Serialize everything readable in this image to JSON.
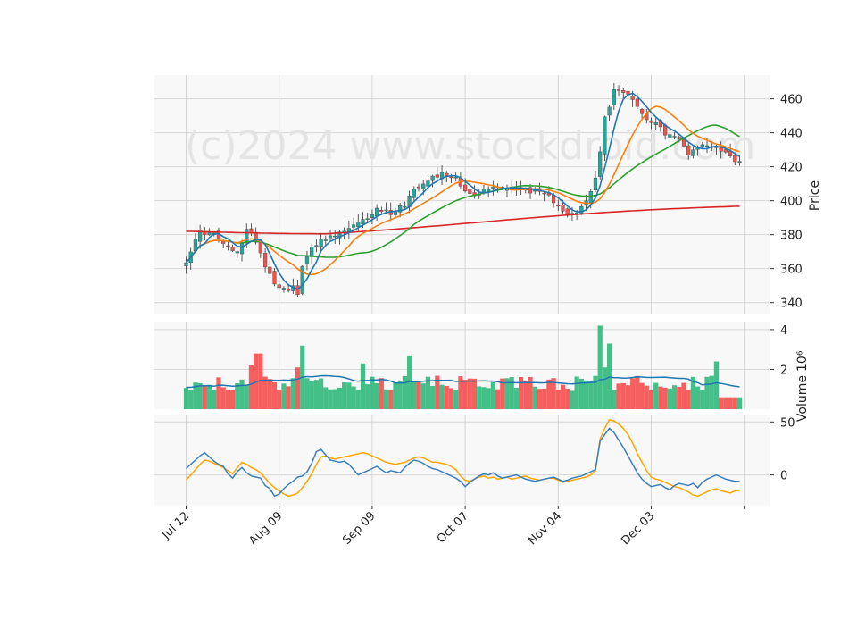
{
  "colors": {
    "up": "#26a69a",
    "down": "#ef5350",
    "up_vol": "#2fb87a",
    "down_vol": "#f64c4c",
    "ma_fast": "#1f77b4",
    "ma_mid": "#ff7f0e",
    "ma_slow": "#2ca02c",
    "ma_long": "#d62728",
    "osc_1": "#3b7fbf",
    "osc_2": "#ffa500",
    "panel_bg": "#f8f8f8",
    "grid": "#d6d6d6"
  },
  "watermark": "(c)2024 www.stockdroid.com",
  "chart_data": [
    {
      "panel": "price",
      "type": "candlestick",
      "ylabel": "Price",
      "ylim": [
        333,
        474
      ],
      "yticks": [
        "340",
        "360",
        "380",
        "400",
        "420",
        "440",
        "460"
      ],
      "ytick_values": [
        340,
        360,
        380,
        400,
        420,
        440,
        460
      ],
      "x_tick_labels": [
        "Jul 12",
        "Aug 09",
        "Sep 09",
        "Oct 07",
        "Nov 04",
        "Dec 03"
      ],
      "x_tick_index": [
        0,
        20,
        40,
        60,
        80,
        100
      ],
      "num_bars": 120,
      "overlay_series": [
        "ma_fast",
        "ma_mid",
        "ma_slow",
        "ma_long"
      ],
      "grid": true
    },
    {
      "panel": "volume",
      "type": "bar",
      "ylabel": "Volume",
      "ylabel_exponent": "10⁶",
      "ylim": [
        0,
        4.4
      ],
      "yticks": [
        "2",
        "4"
      ],
      "ytick_values": [
        2,
        4
      ],
      "overlay_series": [
        "volume_ma"
      ],
      "grid": true
    },
    {
      "panel": "oscillator",
      "type": "line",
      "ylim": [
        -29,
        57
      ],
      "yticks": [
        "0",
        "50"
      ],
      "ytick_values": [
        0,
        50
      ],
      "series": [
        {
          "values": [
            6,
            10,
            14,
            18,
            21,
            17,
            13,
            10,
            8,
            1,
            -3,
            3,
            7,
            2,
            -1,
            -2,
            -3,
            -10,
            -13,
            -20,
            -18,
            -13,
            -9,
            -6,
            -2,
            -1,
            3,
            11,
            22,
            24,
            19,
            14,
            13,
            12,
            13,
            10,
            5,
            0,
            2,
            4,
            6,
            8,
            5,
            2,
            4,
            3,
            2,
            7,
            11,
            14,
            13,
            11,
            8,
            6,
            5,
            3,
            1,
            -1,
            -3,
            -6,
            -11,
            -7,
            -4,
            -1,
            1,
            0,
            2,
            -1,
            -3,
            -2,
            -1,
            0,
            -2,
            -4,
            -5,
            -6,
            -5,
            -4,
            -3,
            -2,
            -4,
            -6,
            -5,
            -3,
            -2,
            -1,
            1,
            3,
            5,
            32,
            38,
            44,
            40,
            33,
            26,
            18,
            10,
            2,
            -4,
            -8,
            -11,
            -10,
            -9,
            -12,
            -14,
            -10,
            -8,
            -9,
            -10,
            -8,
            -12,
            -7,
            -4,
            -2,
            0,
            -2,
            -4,
            -5,
            -6,
            -6
          ]
        },
        {
          "values": [
            -5,
            0,
            5,
            10,
            14,
            13,
            11,
            9,
            7,
            4,
            1,
            7,
            12,
            10,
            7,
            5,
            2,
            -3,
            -8,
            -12,
            -15,
            -18,
            -20,
            -19,
            -17,
            -12,
            -6,
            1,
            10,
            17,
            18,
            16,
            15,
            16,
            17,
            18,
            19,
            20,
            21,
            20,
            18,
            16,
            14,
            12,
            11,
            10,
            11,
            12,
            14,
            16,
            17,
            16,
            14,
            12,
            12,
            11,
            10,
            8,
            5,
            -1,
            -5,
            -6,
            -4,
            -2,
            -1,
            -3,
            -2,
            -4,
            -3,
            -2,
            -4,
            -3,
            -2,
            -1,
            -3,
            -4,
            -5,
            -4,
            -3,
            -3,
            -5,
            -7,
            -6,
            -5,
            -4,
            -3,
            -2,
            0,
            4,
            34,
            44,
            52,
            51,
            48,
            44,
            38,
            30,
            20,
            12,
            4,
            -2,
            -4,
            -5,
            -7,
            -9,
            -11,
            -12,
            -14,
            -16,
            -19,
            -20,
            -18,
            -16,
            -14,
            -13,
            -15,
            -16,
            -17,
            -15,
            -15
          ]
        }
      ],
      "grid": true
    }
  ]
}
